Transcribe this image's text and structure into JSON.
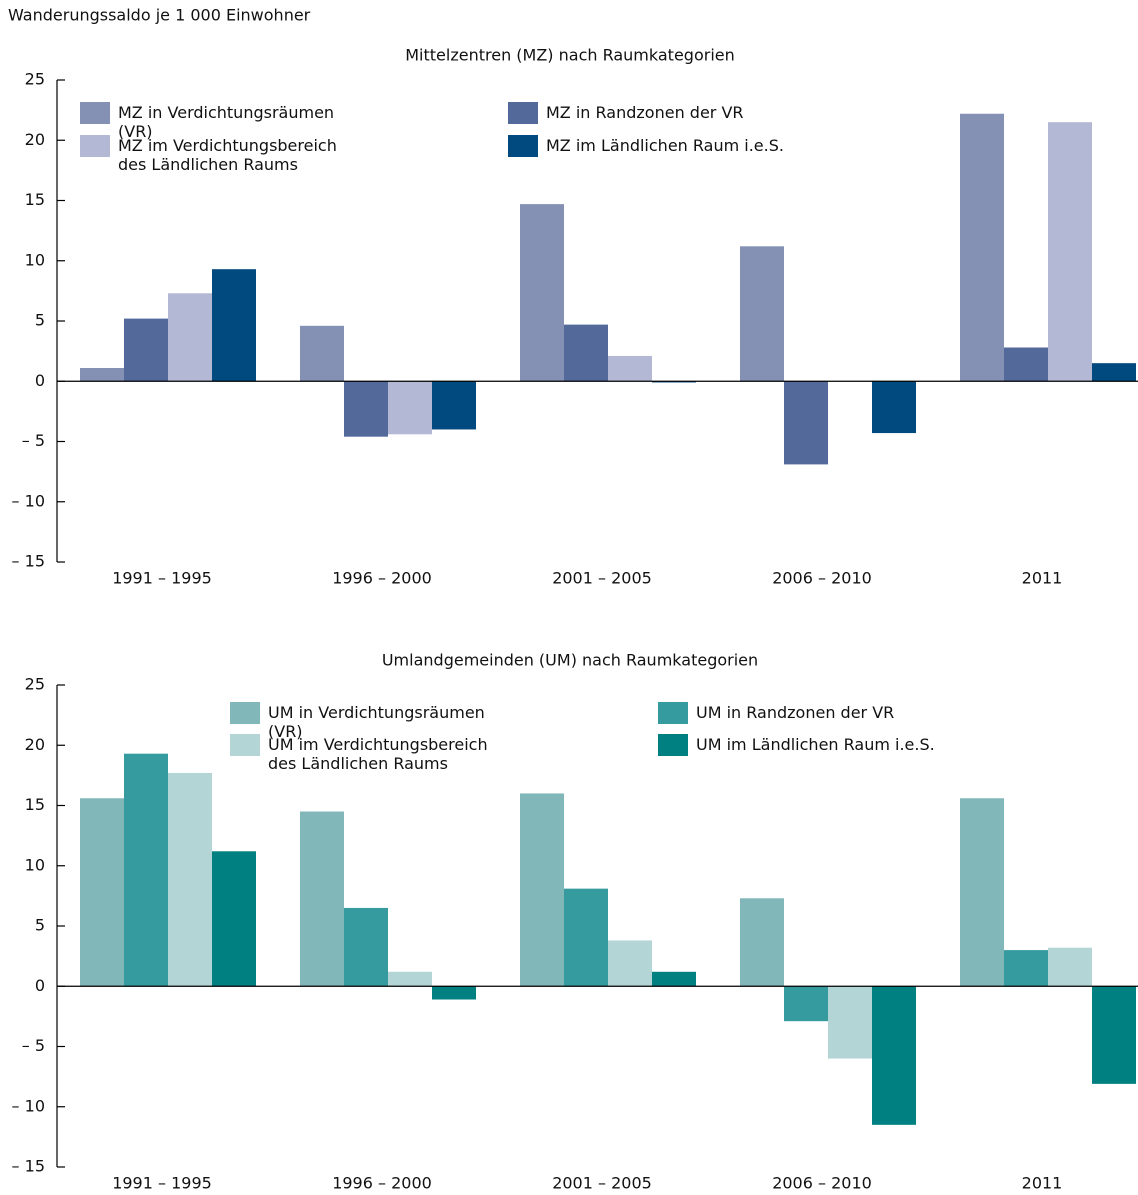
{
  "chart_data": [
    {
      "type": "bar",
      "ylabel": "Wanderungssaldo je 1 000 Einwohner",
      "title": "Mittelzentren (MZ) nach Raumkategorien",
      "categories": [
        "1991 – 1995",
        "1996 – 2000",
        "2001 – 2005",
        "2006 – 2010",
        "2011"
      ],
      "series": [
        {
          "name": "MZ in Verdichtungsräumen (VR)",
          "color": "#8491b4",
          "values": [
            1.1,
            4.6,
            14.7,
            11.2,
            22.2
          ]
        },
        {
          "name": "MZ in Randzonen der VR",
          "color": "#52699a",
          "values": [
            5.2,
            -4.6,
            4.7,
            -6.9,
            2.8
          ]
        },
        {
          "name": "MZ im Verdichtungsbereich des Ländlichen Raums",
          "color": "#b3b9d4",
          "values": [
            7.3,
            -4.4,
            2.1,
            null,
            21.5
          ]
        },
        {
          "name": "MZ im Ländlichen Raum i.e.S.",
          "color": "#004a7f",
          "values": [
            9.3,
            -4.0,
            -0.1,
            -4.3,
            1.5
          ]
        }
      ],
      "ylim": [
        -15,
        25
      ],
      "yticks": [
        {
          "value": -15,
          "label": "– 15"
        },
        {
          "value": -10,
          "label": "– 10"
        },
        {
          "value": -5,
          "label": "– 5"
        },
        0,
        5,
        10,
        15,
        20,
        25
      ]
    },
    {
      "type": "bar",
      "title": "Umlandgemeinden (UM) nach Raumkategorien",
      "categories": [
        "1991 – 1995",
        "1996 – 2000",
        "2001 – 2005",
        "2006 – 2010",
        "2011"
      ],
      "series": [
        {
          "name": "UM in Verdichtungsräumen (VR)",
          "color": "#81b7b8",
          "values": [
            15.6,
            14.5,
            16.0,
            7.3,
            15.6
          ]
        },
        {
          "name": "UM in Randzonen der VR",
          "color": "#369b9e",
          "values": [
            19.3,
            6.5,
            8.1,
            -2.9,
            3.0
          ]
        },
        {
          "name": "UM im Verdichtungsbereich des Ländlichen Raums",
          "color": "#b4d5d6",
          "values": [
            17.7,
            1.2,
            3.8,
            -6.0,
            3.2
          ]
        },
        {
          "name": "UM im Ländlichen Raum i.e.S.",
          "color": "#008080",
          "values": [
            11.2,
            -1.1,
            1.2,
            -11.5,
            -8.1
          ]
        }
      ],
      "ylim": [
        -15,
        25
      ],
      "yticks": [
        {
          "value": -15,
          "label": "– 15"
        },
        {
          "value": -10,
          "label": "– 10"
        },
        {
          "value": -5,
          "label": "– 5"
        },
        0,
        5,
        10,
        15,
        20,
        25
      ]
    }
  ]
}
